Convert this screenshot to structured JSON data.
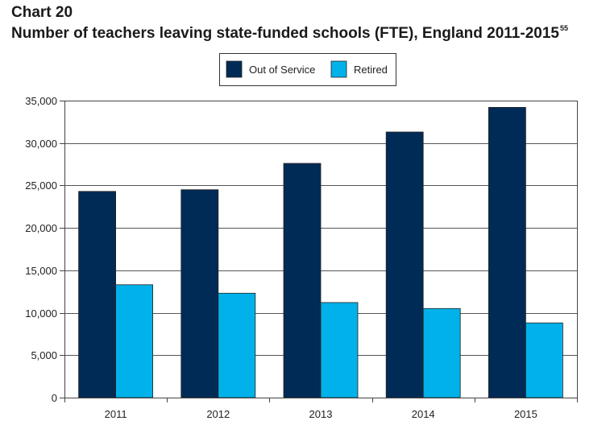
{
  "figure": {
    "label": "Chart 20",
    "title": "Number of teachers leaving state-funded schools (FTE), England 2011-2015",
    "footnote_ref": "55"
  },
  "chart_data": {
    "type": "bar",
    "title": "Number of teachers leaving state-funded schools (FTE), England 2011-2015",
    "xlabel": "",
    "ylabel": "",
    "categories": [
      "2011",
      "2012",
      "2013",
      "2014",
      "2015"
    ],
    "series": [
      {
        "name": "Out of Service",
        "color": "#002b57",
        "values": [
          24300,
          24500,
          27600,
          31300,
          34200
        ]
      },
      {
        "name": "Retired",
        "color": "#00b2e9",
        "values": [
          13300,
          12300,
          11200,
          10500,
          8800
        ]
      }
    ],
    "ylim": [
      0,
      35000
    ],
    "yticks": [
      "0",
      "5,000",
      "10,000",
      "15,000",
      "20,000",
      "25,000",
      "30,000",
      "35,000"
    ],
    "grid": true,
    "legend_position": "top-center"
  }
}
